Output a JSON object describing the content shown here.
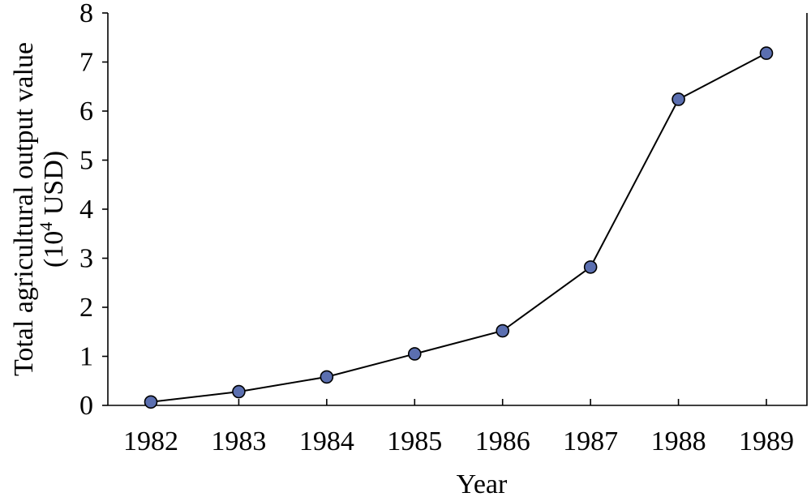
{
  "chart_data": {
    "type": "line",
    "x": [
      "1982",
      "1983",
      "1984",
      "1985",
      "1986",
      "1987",
      "1988",
      "1989"
    ],
    "series": [
      {
        "values": [
          0.07,
          0.28,
          0.58,
          1.05,
          1.52,
          2.82,
          6.24,
          7.18
        ]
      }
    ],
    "xlabel": "Year",
    "ylabel_line1": "Total agricultural output value",
    "ylabel_line2_prefix": "(10",
    "ylabel_line2_sup": "4",
    "ylabel_line2_suffix": " USD)",
    "ylim": [
      0,
      8
    ],
    "yticks": [
      "0",
      "1",
      "2",
      "3",
      "4",
      "5",
      "6",
      "7",
      "8"
    ],
    "grid": false,
    "marker_color": "#5b6fb0"
  }
}
